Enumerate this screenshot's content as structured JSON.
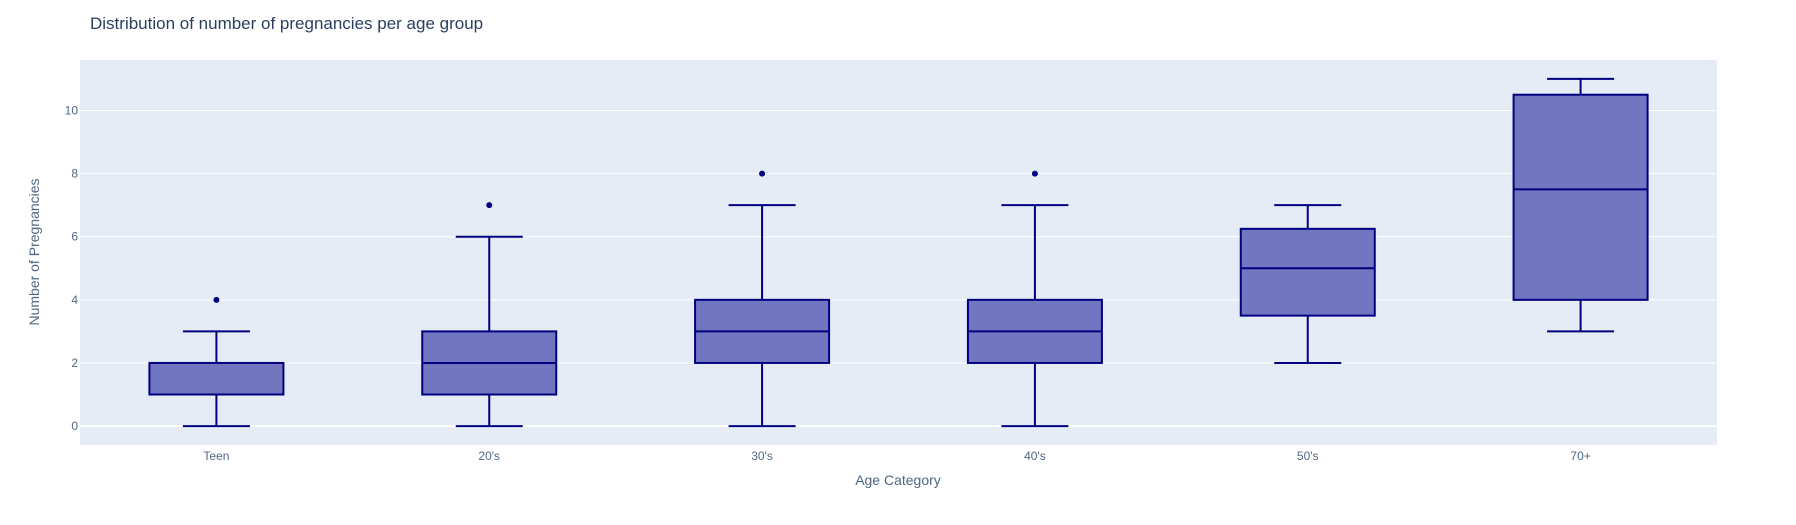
{
  "chart_data": {
    "type": "box",
    "title": "Distribution of number of pregnancies per age group",
    "xlabel": "Age Category",
    "ylabel": "Number of Pregnancies",
    "categories": [
      "Teen",
      "20's",
      "30's",
      "40's",
      "50's",
      "70+"
    ],
    "ylim": [
      -0.6,
      11.6
    ],
    "yticks": [
      0,
      2,
      4,
      6,
      8,
      10
    ],
    "grid": true,
    "series": [
      {
        "boxes": [
          {
            "category": "Teen",
            "min": 0,
            "q1": 1,
            "median": 1,
            "q3": 2,
            "max": 3,
            "outliers": [
              4
            ]
          },
          {
            "category": "20's",
            "min": 0,
            "q1": 1,
            "median": 2,
            "q3": 3,
            "max": 6,
            "outliers": [
              7
            ]
          },
          {
            "category": "30's",
            "min": 0,
            "q1": 2,
            "median": 3,
            "q3": 4,
            "max": 7,
            "outliers": [
              8
            ]
          },
          {
            "category": "40's",
            "min": 0,
            "q1": 2,
            "median": 3,
            "q3": 4,
            "max": 7,
            "outliers": [
              8
            ]
          },
          {
            "category": "50's",
            "min": 2,
            "q1": 3.5,
            "median": 5,
            "q3": 6.25,
            "max": 7,
            "outliers": []
          },
          {
            "category": "70+",
            "min": 3,
            "q1": 4,
            "median": 7.5,
            "q3": 10.5,
            "max": 11,
            "outliers": []
          }
        ]
      }
    ],
    "colors": {
      "box_fill": "#7276c1",
      "box_line": "#000080",
      "plot_background": "#e5ecf6",
      "grid": "#ffffff"
    }
  }
}
